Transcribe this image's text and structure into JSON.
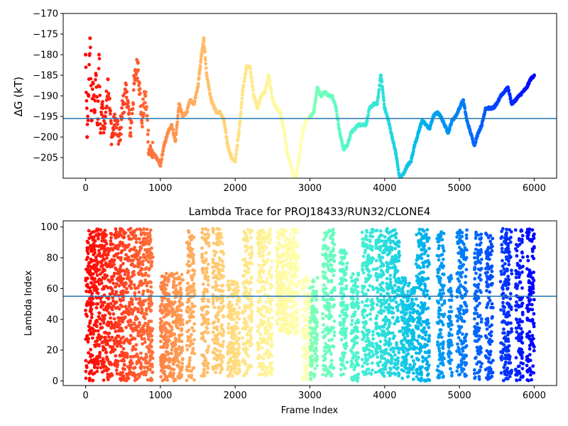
{
  "chart_data": [
    {
      "type": "scatter",
      "title": "",
      "xlabel": "",
      "ylabel": "ΔG (kT)",
      "xlim": [
        -300,
        6300
      ],
      "ylim": [
        -210,
        -170
      ],
      "xticks": [
        0,
        1000,
        2000,
        3000,
        4000,
        5000,
        6000
      ],
      "xtick_labels": [
        "0",
        "1000",
        "2000",
        "3000",
        "4000",
        "5000",
        "6000"
      ],
      "yticks": [
        -205,
        -200,
        -195,
        -190,
        -185,
        -180,
        -175,
        -170
      ],
      "ytick_labels": [
        "−205",
        "−200",
        "−195",
        "−190",
        "−185",
        "−180",
        "−175",
        "−170"
      ],
      "hline": -195.5,
      "hline_color": "#1f77b4",
      "colormap": "rainbow (reversed: red at frame 0, violet at frame 6000)",
      "grid": false,
      "series": [
        {
          "x": [
            0,
            20,
            40,
            60,
            80,
            100,
            120,
            140,
            160,
            180,
            200,
            220,
            250,
            300,
            350,
            400,
            450,
            500,
            550,
            600,
            650,
            700,
            750,
            800,
            850,
            900,
            950,
            1000,
            1050,
            1100,
            1150,
            1200,
            1250,
            1300,
            1350,
            1400,
            1450,
            1500,
            1550,
            1580,
            1620,
            1680,
            1750,
            1800,
            1850,
            1900,
            1950,
            2000,
            2050,
            2100,
            2150,
            2200,
            2250,
            2300,
            2350,
            2400,
            2450,
            2500,
            2550,
            2600,
            2650,
            2700,
            2750,
            2800,
            2850,
            2900,
            2950,
            3000,
            3050,
            3100,
            3150,
            3200,
            3250,
            3300,
            3350,
            3400,
            3450,
            3500,
            3550,
            3600,
            3650,
            3700,
            3750,
            3800,
            3850,
            3900,
            3950,
            4000,
            4050,
            4100,
            4150,
            4200,
            4250,
            4300,
            4350,
            4400,
            4450,
            4500,
            4550,
            4600,
            4650,
            4700,
            4750,
            4800,
            4850,
            4900,
            4950,
            5000,
            5050,
            5100,
            5150,
            5200,
            5250,
            5300,
            5350,
            5400,
            5450,
            5500,
            5550,
            5600,
            5650,
            5700,
            5750,
            5800,
            5850,
            5900,
            5950,
            6000
          ],
          "y": [
            -180,
            -200,
            -190,
            -176,
            -196,
            -187,
            -194,
            -185,
            -197,
            -180,
            -199,
            -192,
            -198,
            -186,
            -200,
            -196,
            -201,
            -192,
            -189,
            -199,
            -187,
            -182,
            -196,
            -190,
            -203,
            -204,
            -205,
            -207,
            -202,
            -199,
            -197,
            -201,
            -192,
            -195,
            -194,
            -191,
            -192,
            -188,
            -180,
            -176,
            -185,
            -191,
            -194,
            -194,
            -196,
            -202,
            -205,
            -206,
            -199,
            -189,
            -183,
            -183,
            -190,
            -193,
            -190,
            -189,
            -185,
            -191,
            -193,
            -194,
            -198,
            -204,
            -207,
            -211,
            -206,
            -199,
            -196,
            -195,
            -194,
            -188,
            -190,
            -189,
            -190,
            -190,
            -193,
            -199,
            -203,
            -202,
            -199,
            -198,
            -197,
            -197,
            -197,
            -193,
            -192,
            -192,
            -185,
            -193,
            -196,
            -200,
            -204,
            -210,
            -209,
            -207,
            -206,
            -202,
            -199,
            -196,
            -197,
            -198,
            -195,
            -194,
            -195,
            -197,
            -199,
            -196,
            -195,
            -193,
            -191,
            -196,
            -199,
            -202,
            -199,
            -197,
            -193,
            -193,
            -193,
            -192,
            -190,
            -189,
            -188,
            -192,
            -191,
            -190,
            -189,
            -188,
            -186,
            -185
          ]
        }
      ]
    },
    {
      "type": "scatter",
      "title": "Lambda Trace for PROJ18433/RUN32/CLONE4",
      "xlabel": "Frame Index",
      "ylabel": "Lambda Index",
      "xlim": [
        -300,
        6300
      ],
      "ylim": [
        -3,
        104
      ],
      "xticks": [
        0,
        1000,
        2000,
        3000,
        4000,
        5000,
        6000
      ],
      "xtick_labels": [
        "0",
        "1000",
        "2000",
        "3000",
        "4000",
        "5000",
        "6000"
      ],
      "yticks": [
        0,
        20,
        40,
        60,
        80,
        100
      ],
      "ytick_labels": [
        "0",
        "20",
        "40",
        "60",
        "80",
        "100"
      ],
      "hline": 55,
      "hline_color": "#1f77b4",
      "colormap": "rainbow (reversed: red at frame 0, violet at frame 6000)",
      "grid": false,
      "bands": [
        {
          "x_start": 0,
          "x_end": 900,
          "y_min": 0,
          "y_max": 99
        },
        {
          "x_start": 1000,
          "x_end": 1300,
          "y_min": 0,
          "y_max": 70
        },
        {
          "x_start": 1350,
          "x_end": 1460,
          "y_min": 0,
          "y_max": 99
        },
        {
          "x_start": 1550,
          "x_end": 1650,
          "y_min": 3,
          "y_max": 99
        },
        {
          "x_start": 1700,
          "x_end": 1850,
          "y_min": 5,
          "y_max": 99
        },
        {
          "x_start": 1900,
          "x_end": 2060,
          "y_min": 3,
          "y_max": 65
        },
        {
          "x_start": 2100,
          "x_end": 2230,
          "y_min": 3,
          "y_max": 99
        },
        {
          "x_start": 2300,
          "x_end": 2500,
          "y_min": 3,
          "y_max": 99
        },
        {
          "x_start": 2550,
          "x_end": 2850,
          "y_min": 30,
          "y_max": 99
        },
        {
          "x_start": 2900,
          "x_end": 3100,
          "y_min": 0,
          "y_max": 68
        },
        {
          "x_start": 3170,
          "x_end": 3330,
          "y_min": 3,
          "y_max": 99
        },
        {
          "x_start": 3400,
          "x_end": 3500,
          "y_min": 3,
          "y_max": 85
        },
        {
          "x_start": 3550,
          "x_end": 3650,
          "y_min": 0,
          "y_max": 70
        },
        {
          "x_start": 3700,
          "x_end": 3850,
          "y_min": 3,
          "y_max": 99
        },
        {
          "x_start": 3880,
          "x_end": 4200,
          "y_min": 3,
          "y_max": 99
        },
        {
          "x_start": 4220,
          "x_end": 4400,
          "y_min": 0,
          "y_max": 68
        },
        {
          "x_start": 4420,
          "x_end": 4600,
          "y_min": 0,
          "y_max": 99
        },
        {
          "x_start": 4700,
          "x_end": 4800,
          "y_min": 0,
          "y_max": 99
        },
        {
          "x_start": 4850,
          "x_end": 4900,
          "y_min": 3,
          "y_max": 70
        },
        {
          "x_start": 4960,
          "x_end": 5100,
          "y_min": 3,
          "y_max": 99
        },
        {
          "x_start": 5200,
          "x_end": 5300,
          "y_min": 0,
          "y_max": 99
        },
        {
          "x_start": 5350,
          "x_end": 5450,
          "y_min": 0,
          "y_max": 99
        },
        {
          "x_start": 5550,
          "x_end": 5700,
          "y_min": 0,
          "y_max": 99
        },
        {
          "x_start": 5750,
          "x_end": 5850,
          "y_min": 0,
          "y_max": 99
        },
        {
          "x_start": 5900,
          "x_end": 6000,
          "y_min": 0,
          "y_max": 99
        }
      ]
    }
  ]
}
